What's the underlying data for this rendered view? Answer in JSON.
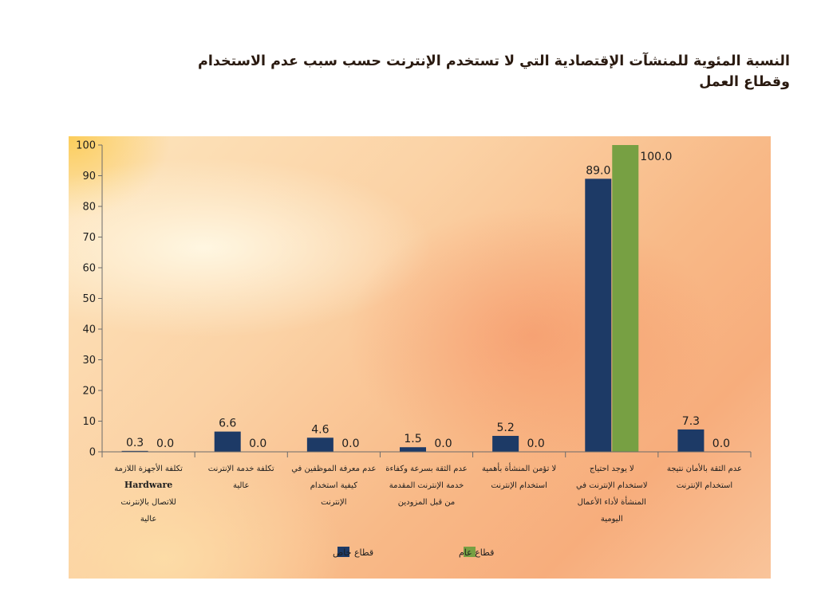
{
  "title_lines": [
    "النسبة المئوية للمنشآت الإقتصادية التي لا تستخدم الإنترنت حسب سبب عدم الاستخدام",
    "وقطاع العمل"
  ],
  "colors": {
    "private": "#1d3a66",
    "public": "#77a043",
    "axis": "#6b6b6b"
  },
  "chart_data": {
    "type": "bar",
    "title": "النسبة المئوية للمنشآت الإقتصادية التي لا تستخدم الإنترنت حسب سبب عدم الاستخدام وقطاع العمل",
    "xlabel": "",
    "ylabel": "",
    "ylim": [
      0,
      100
    ],
    "yticks": [
      0,
      10,
      20,
      30,
      40,
      50,
      60,
      70,
      80,
      90,
      100
    ],
    "grid": false,
    "legend_position": "bottom",
    "categories": [
      [
        "تكلفة الأجهزة اللازمة",
        "Hardware",
        "للاتصال بالإنترنت",
        "عالية"
      ],
      [
        "تكلفة خدمة الإنترنت",
        "عالية"
      ],
      [
        "عدم معرفة الموظفين في",
        "كيفية استخدام",
        "الإنترنت"
      ],
      [
        "عدم الثقة بسرعة وكفاءة",
        "خدمة الإنترنت المقدمة",
        "من قبل المزودين"
      ],
      [
        "لا تؤمن المنشأة بأهمية",
        "استخدام الإنترنت"
      ],
      [
        "لا يوجد احتياج",
        "لاستخدام الإنترنت في",
        "المنشأة لأداء الأعمال",
        "اليومية"
      ],
      [
        "عدم الثقة بالأمان نتيجة",
        "استخدام الإنترنت"
      ]
    ],
    "series": [
      {
        "name": "قطاع خاص",
        "values": [
          0.3,
          6.6,
          4.6,
          1.5,
          5.2,
          89.0,
          7.3
        ],
        "labels": [
          "0.3",
          "6.6",
          "4.6",
          "1.5",
          "5.2",
          "89.0",
          "7.3"
        ]
      },
      {
        "name": "قطاع عام",
        "values": [
          0.0,
          0.0,
          0.0,
          0.0,
          0.0,
          100.0,
          0.0
        ],
        "labels": [
          "0.0",
          "0.0",
          "0.0",
          "0.0",
          "0.0",
          "100.0",
          "0.0"
        ]
      }
    ]
  }
}
